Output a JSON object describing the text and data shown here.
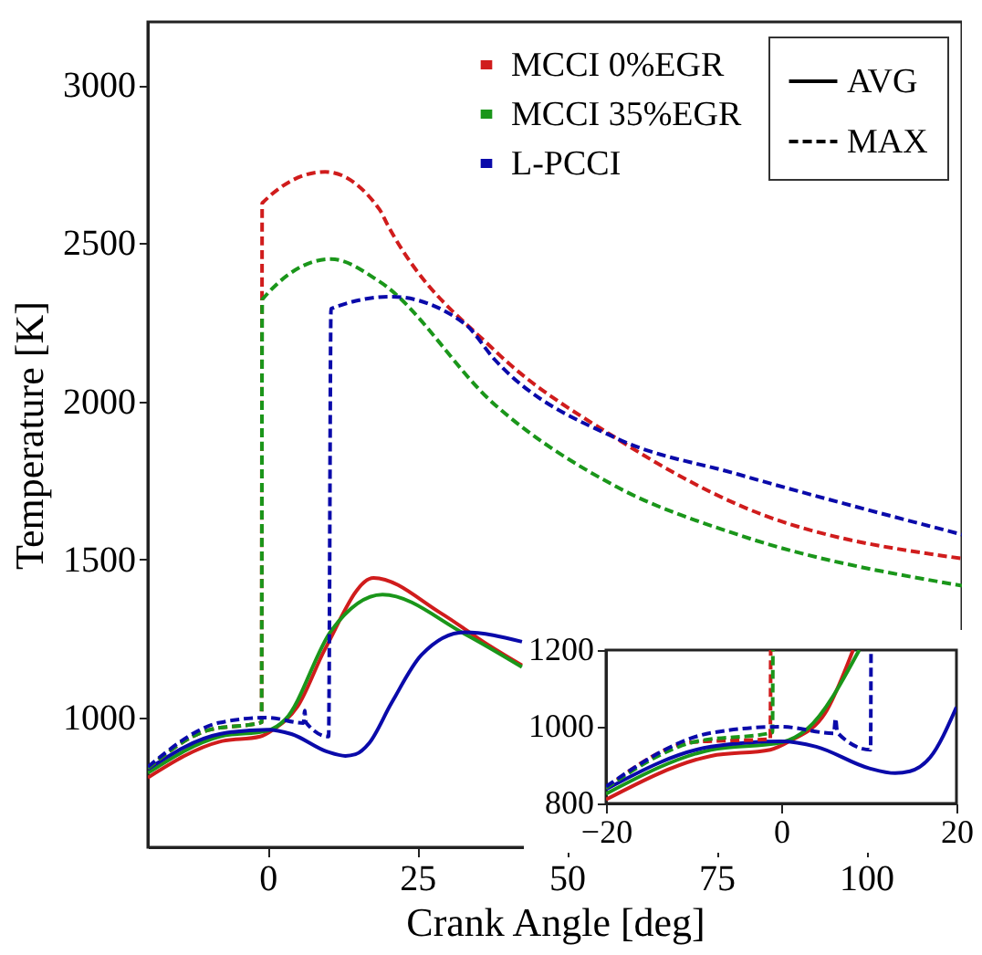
{
  "chart_data": [
    {
      "type": "line",
      "xlabel": "Crank Angle [deg]",
      "ylabel": "Temperature [K]",
      "xlim": [
        -20,
        116
      ],
      "ylim": [
        590,
        3200
      ],
      "xticks": [
        0,
        25,
        50,
        75,
        100
      ],
      "yticks": [
        1000,
        1500,
        2000,
        2500,
        3000
      ],
      "grid": false,
      "legend": "top right",
      "annotations": [
        "AVG",
        "MAX"
      ],
      "series": [
        {
          "name": "MCCI 0%EGR",
          "color": "#d01c1c",
          "line_style": "solid",
          "x": [
            -20,
            -8,
            -1.25,
            1,
            5,
            9.6,
            17.7,
            28.9,
            37,
            42.5
          ],
          "values": [
            810,
            924,
            940,
            963,
            1035,
            1217,
            1442,
            1331,
            1228,
            1165
          ]
        },
        {
          "name": "MCCI 35%EGR",
          "color": "#1a961a",
          "line_style": "solid",
          "x": [
            -20,
            -8,
            0,
            3,
            10.6,
            19.2,
            32.9,
            42.5
          ],
          "values": [
            825,
            940,
            959,
            995,
            1274,
            1389,
            1265,
            1160
          ]
        },
        {
          "name": "L-PCCI",
          "color": "#0a0aaa",
          "line_style": "solid",
          "x": [
            -20,
            -8,
            0,
            4,
            10,
            13,
            14.7,
            17,
            20.7,
            25.7,
            32.9,
            42.5
          ],
          "values": [
            837,
            948,
            962,
            948,
            892,
            879,
            884,
            920,
            1046,
            1198,
            1270,
            1240
          ]
        },
        {
          "color": "#d01c1c",
          "line_style": "dashed",
          "x": [
            -20,
            -10,
            -1,
            -0.9,
            9.6,
            18.7,
            20,
            38,
            58.2,
            78.5,
            116
          ],
          "values": [
            840,
            960,
            985,
            2627,
            2726,
            2607,
            2560,
            2160,
            1884,
            1674,
            1503
          ]
        },
        {
          "color": "#1a961a",
          "line_style": "dashed",
          "x": [
            -20,
            -10,
            -1,
            -0.9,
            10.6,
            18.7,
            38,
            58.2,
            78.5,
            116
          ],
          "values": [
            840,
            960,
            985,
            2322,
            2450,
            2379,
            1989,
            1731,
            1579,
            1417
          ]
        },
        {
          "color": "#0a0aaa",
          "line_style": "dashed",
          "x": [
            -20,
            -8,
            0,
            6,
            6.2,
            6.4,
            10.2,
            10.6,
            20.7,
            32.9,
            38,
            58.2,
            78.5,
            116
          ],
          "values": [
            844,
            984,
            1000,
            983,
            1022,
            985,
            940,
            2293,
            2331,
            2246,
            2131,
            1884,
            1770,
            1579
          ]
        }
      ]
    },
    {
      "type": "line",
      "xlim": [
        -20,
        20
      ],
      "ylim": [
        800,
        1200
      ],
      "xticks": [
        -20,
        0,
        20
      ],
      "yticks": [
        800,
        1000,
        1200
      ],
      "grid": false,
      "series": [
        {
          "color": "#d01c1c",
          "line_style": "solid",
          "x": [
            -20,
            -8,
            -1.25,
            1,
            5,
            8.2
          ],
          "values": [
            810,
            924,
            940,
            963,
            1035,
            1200
          ]
        },
        {
          "color": "#1a961a",
          "line_style": "solid",
          "x": [
            -20,
            -8,
            0,
            3,
            8.9
          ],
          "values": [
            825,
            940,
            959,
            995,
            1200
          ]
        },
        {
          "color": "#0a0aaa",
          "line_style": "solid",
          "x": [
            -20,
            -8,
            0,
            4,
            10,
            13,
            14.7,
            17,
            20
          ],
          "values": [
            837,
            948,
            962,
            948,
            892,
            879,
            884,
            920,
            1051
          ]
        },
        {
          "color": "#d01c1c",
          "line_style": "dashed",
          "x": [
            -20,
            -10,
            -1.25,
            -1.2
          ],
          "values": [
            840,
            960,
            968,
            1200
          ]
        },
        {
          "color": "#1a961a",
          "line_style": "dashed",
          "x": [
            -20,
            -10,
            -1,
            -0.95
          ],
          "values": [
            840,
            960,
            985,
            1200
          ]
        },
        {
          "color": "#0a0aaa",
          "line_style": "dashed",
          "x": [
            -20,
            -8,
            0,
            6,
            6.2,
            6.4,
            10.2,
            10.25
          ],
          "values": [
            844,
            984,
            1000,
            983,
            1022,
            985,
            940,
            1200
          ]
        }
      ]
    }
  ]
}
